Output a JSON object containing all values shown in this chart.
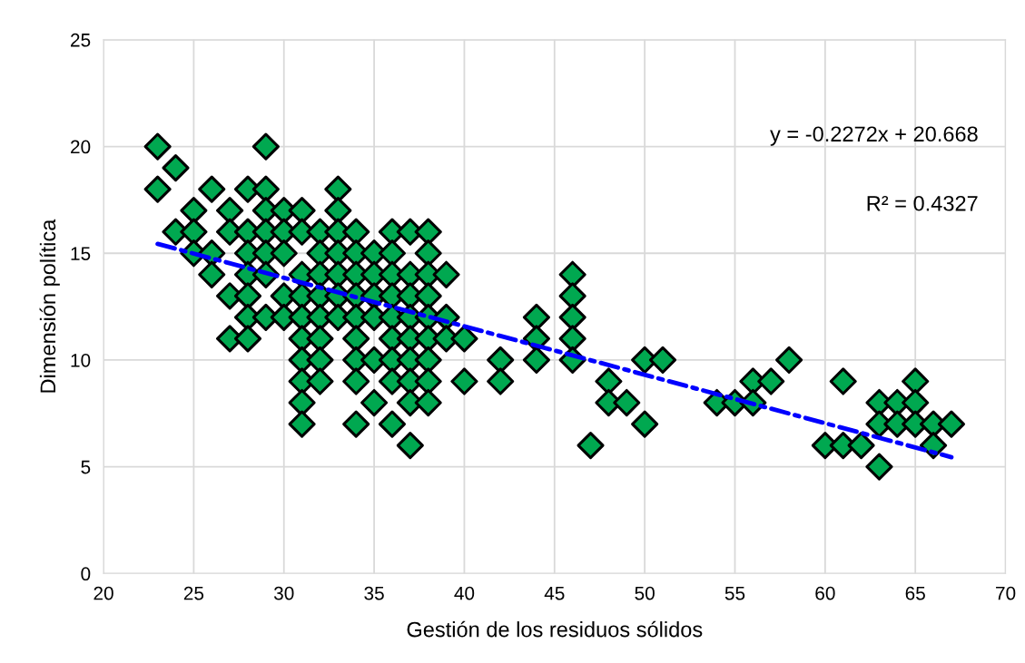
{
  "chart_data": {
    "type": "scatter",
    "xlabel": "Gestión de los residuos sólidos",
    "ylabel": "Dimensión política",
    "xlim": [
      20,
      70
    ],
    "xticks": [
      20,
      25,
      30,
      35,
      40,
      45,
      50,
      55,
      60,
      65,
      70
    ],
    "ylim": [
      0,
      25
    ],
    "yticks": [
      0,
      5,
      10,
      15,
      20,
      25
    ],
    "grid": true,
    "series": [
      {
        "color": "#00a850",
        "marker": "diamond",
        "x": [
          23,
          23,
          24,
          24,
          25,
          25,
          25,
          26,
          26,
          26,
          27,
          27,
          27,
          27,
          28,
          28,
          28,
          28,
          28,
          28,
          28,
          29,
          29,
          29,
          29,
          29,
          29,
          29,
          30,
          30,
          30,
          30,
          30,
          31,
          31,
          31,
          31,
          31,
          31,
          31,
          31,
          31,
          31,
          32,
          32,
          32,
          32,
          32,
          32,
          32,
          32,
          33,
          33,
          33,
          33,
          33,
          33,
          33,
          34,
          34,
          34,
          34,
          34,
          34,
          34,
          34,
          34,
          35,
          35,
          35,
          35,
          35,
          35,
          36,
          36,
          36,
          36,
          36,
          36,
          36,
          36,
          36,
          37,
          37,
          37,
          37,
          37,
          37,
          37,
          37,
          37,
          38,
          38,
          38,
          38,
          38,
          38,
          38,
          38,
          38,
          39,
          39,
          39,
          40,
          40,
          42,
          42,
          44,
          44,
          44,
          46,
          46,
          46,
          46,
          46,
          47,
          48,
          48,
          49,
          50,
          50,
          51,
          54,
          55,
          56,
          56,
          57,
          58,
          60,
          61,
          61,
          62,
          63,
          63,
          63,
          64,
          64,
          65,
          65,
          65,
          66,
          66,
          67
        ],
        "values": [
          20,
          18,
          19,
          16,
          17,
          16,
          15,
          18,
          15,
          14,
          17,
          16,
          13,
          11,
          18,
          16,
          15,
          14,
          13,
          12,
          11,
          20,
          18,
          17,
          16,
          15,
          14,
          12,
          17,
          16,
          15,
          13,
          12,
          17,
          16,
          14,
          13,
          12,
          11,
          10,
          9,
          8,
          7,
          16,
          15,
          14,
          13,
          12,
          11,
          10,
          9,
          18,
          17,
          16,
          15,
          14,
          13,
          12,
          16,
          15,
          14,
          13,
          12,
          11,
          10,
          9,
          7,
          15,
          14,
          13,
          12,
          10,
          8,
          16,
          15,
          14,
          13,
          12,
          11,
          10,
          9,
          7,
          16,
          14,
          13,
          12,
          11,
          10,
          9,
          8,
          6,
          16,
          15,
          14,
          13,
          12,
          11,
          10,
          9,
          8,
          14,
          12,
          11,
          11,
          9,
          10,
          9,
          12,
          11,
          10,
          14,
          13,
          12,
          11,
          10,
          6,
          9,
          8,
          8,
          10,
          7,
          10,
          8,
          8,
          9,
          8,
          9,
          10,
          6,
          9,
          6,
          6,
          8,
          7,
          5,
          8,
          7,
          9,
          8,
          7,
          7,
          6,
          7
        ]
      },
      {
        "type": "line",
        "color": "#0000ff",
        "line_style": "dashed",
        "marker": "none",
        "x": [
          23,
          67
        ],
        "values": [
          15.44,
          5.45
        ]
      }
    ],
    "annotations": [
      "y = -0.2272x + 20.668",
      "R² = 0.4327"
    ]
  }
}
